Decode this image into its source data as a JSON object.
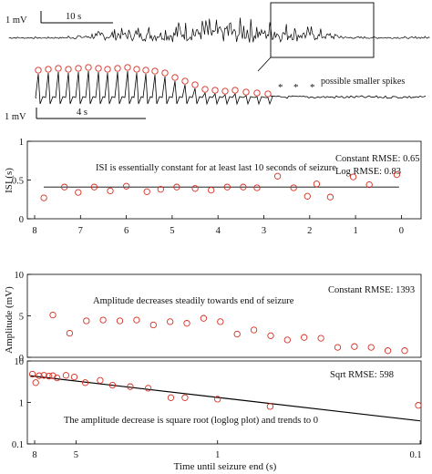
{
  "trace_panel": {
    "scale_top_v": "1 mV",
    "scale_top_t": "10 s",
    "scale_zoom_v": "1 mV",
    "scale_zoom_t": "4 s",
    "smaller_spikes_note": "possible smaller spikes",
    "asterisks": [
      "*",
      "*",
      "*"
    ]
  },
  "chart_data": [
    {
      "type": "scatter",
      "xlabel": "",
      "ylabel": "ISI (s)",
      "xlim": [
        8.6,
        -0.3
      ],
      "ylim": [
        0,
        1
      ],
      "xticks": [
        "8",
        "7",
        "6",
        "5",
        "4",
        "3",
        "2",
        "1",
        "0"
      ],
      "yticks": [
        "0",
        "0.5",
        "1"
      ],
      "annotation": "ISI is essentially constant for at least last 10 seconds of seizure",
      "rmse_lines": [
        "Constant RMSE: 0.65",
        "Log RMSE: 0.83"
      ],
      "fit": {
        "x": [
          7.8,
          0.05
        ],
        "y": [
          0.41,
          0.41
        ]
      },
      "series": [
        {
          "x": [
            7.8,
            7.35,
            7.05,
            6.7,
            6.35,
            6.0,
            5.55,
            5.25,
            4.9,
            4.5,
            4.15,
            3.8,
            3.45,
            3.15,
            2.7,
            2.35,
            2.05,
            1.85,
            1.55,
            1.05,
            0.7,
            0.1
          ],
          "y": [
            0.27,
            0.41,
            0.34,
            0.41,
            0.36,
            0.42,
            0.35,
            0.38,
            0.41,
            0.39,
            0.37,
            0.41,
            0.41,
            0.4,
            0.55,
            0.4,
            0.29,
            0.45,
            0.28,
            0.54,
            0.44,
            0.57
          ]
        }
      ]
    },
    {
      "type": "scatter",
      "xlabel": "",
      "ylabel": "Amplitude (mV)",
      "ylim": [
        0,
        10
      ],
      "yticks": [
        "0",
        "5",
        "10"
      ],
      "annotation": "Amplitude decreases steadily towards end of seizure",
      "rmse_lines": [
        "Constant RMSE: 1393"
      ],
      "series": [
        {
          "y": [
            5.1,
            2.9,
            4.4,
            4.5,
            4.4,
            4.5,
            3.9,
            4.3,
            4.1,
            4.7,
            4.3,
            2.8,
            3.3,
            2.6,
            2.1,
            2.4,
            2.3,
            1.2,
            1.3,
            1.2,
            0.8,
            0.8
          ]
        }
      ]
    },
    {
      "type": "scatter",
      "xlabel": "Time until seizure end (s)",
      "ylabel": "",
      "xscale": "log",
      "yscale": "log",
      "xlim": [
        8.6,
        0.1
      ],
      "ylim": [
        0.1,
        10
      ],
      "xticks": [
        "8",
        "5",
        "1",
        "0.1"
      ],
      "yticks": [
        "0.1",
        "1",
        "10"
      ],
      "annotation": "The amplitude decrease is square root (loglog plot) and trends to 0",
      "rmse_lines": [
        "Sqrt RMSE: 598"
      ],
      "fit": {
        "x": [
          8.4,
          0.1
        ],
        "y": [
          4.4,
          0.36
        ]
      },
      "series": [
        {
          "x": [
            8.2,
            7.9,
            7.6,
            7.2,
            6.8,
            6.5,
            6.2,
            5.6,
            5.1,
            4.5,
            3.8,
            3.3,
            2.7,
            2.2,
            1.7,
            1.45,
            1.0,
            0.55,
            0.1
          ],
          "y": [
            4.8,
            3.0,
            4.4,
            4.5,
            4.3,
            4.4,
            3.9,
            4.5,
            4.1,
            3.0,
            3.4,
            2.6,
            2.4,
            2.2,
            1.3,
            1.3,
            1.2,
            0.8,
            0.85
          ]
        }
      ]
    }
  ]
}
